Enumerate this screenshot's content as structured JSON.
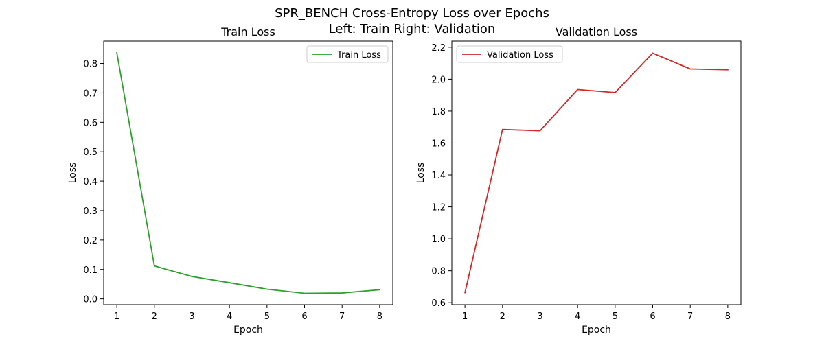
{
  "figure": {
    "suptitle_line1": "SPR_BENCH Cross-Entropy Loss over Epochs",
    "suptitle_line2": "Left: Train  Right: Validation"
  },
  "chart_data": [
    {
      "type": "line",
      "title": "Train Loss",
      "xlabel": "Epoch",
      "ylabel": "Loss",
      "xlim": [
        0.65,
        8.35
      ],
      "ylim": [
        -0.0195,
        0.8759
      ],
      "xticks": [
        1,
        2,
        3,
        4,
        5,
        6,
        7,
        8
      ],
      "yticks": [
        0.0,
        0.1,
        0.2,
        0.3,
        0.4,
        0.5,
        0.6,
        0.7,
        0.8
      ],
      "ytick_decimals": 1,
      "legend_position": "upper-right",
      "grid": false,
      "series": [
        {
          "name": "Train Loss",
          "color": "#2ca02c",
          "x": [
            1,
            2,
            3,
            4,
            5,
            6,
            7,
            8
          ],
          "y": [
            0.837,
            0.112,
            0.076,
            0.055,
            0.033,
            0.019,
            0.02,
            0.031
          ]
        }
      ]
    },
    {
      "type": "line",
      "title": "Validation Loss",
      "xlabel": "Epoch",
      "ylabel": "Loss",
      "xlim": [
        0.65,
        8.35
      ],
      "ylim": [
        0.588,
        2.238
      ],
      "xticks": [
        1,
        2,
        3,
        4,
        5,
        6,
        7,
        8
      ],
      "yticks": [
        0.6,
        0.8,
        1.0,
        1.2,
        1.4,
        1.6,
        1.8,
        2.0,
        2.2
      ],
      "ytick_decimals": 1,
      "legend_position": "upper-left",
      "grid": false,
      "series": [
        {
          "name": "Validation Loss",
          "color": "#d62728",
          "x": [
            1,
            2,
            3,
            4,
            5,
            6,
            7,
            8
          ],
          "y": [
            0.663,
            1.685,
            1.677,
            1.935,
            1.916,
            2.163,
            2.064,
            2.059
          ]
        }
      ]
    }
  ]
}
